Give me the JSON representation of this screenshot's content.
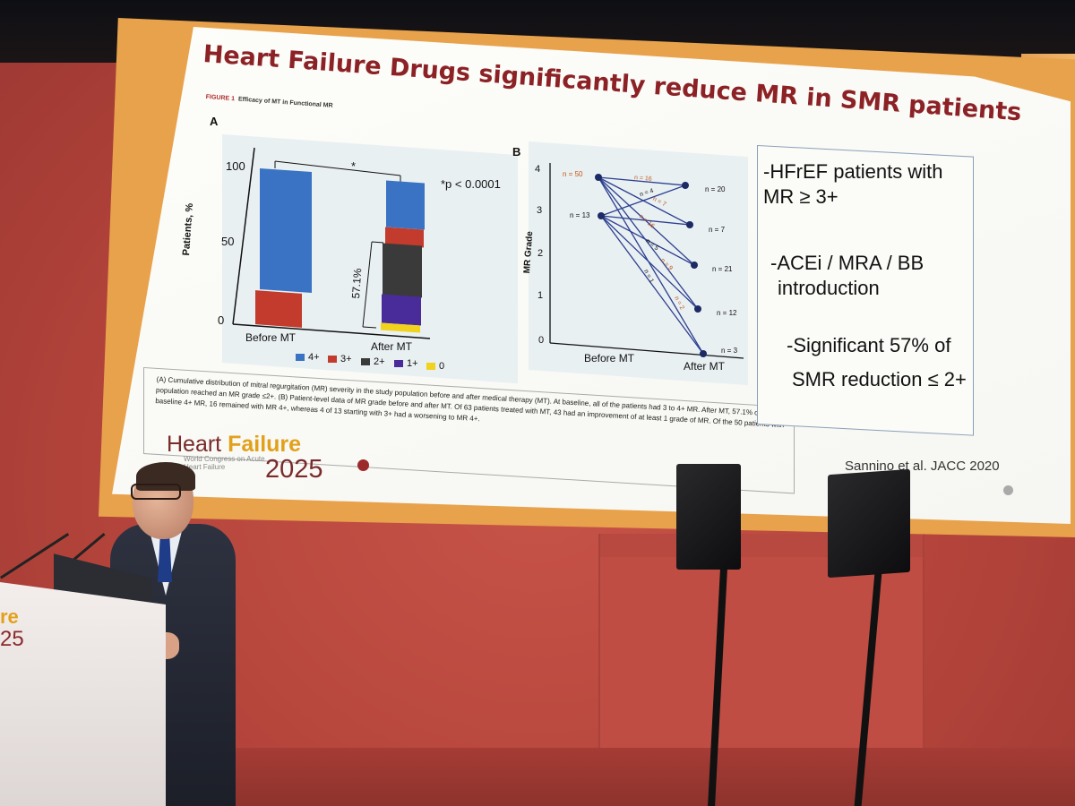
{
  "slide": {
    "title": "Heart Failure Drugs significantly reduce MR in SMR patients",
    "figure_header": "FIGURE 1",
    "figure_subheader": "Efficacy of MT in Functional MR",
    "panel_a_letter": "A",
    "panel_b_letter": "B",
    "panel_a": {
      "ylabel": "Patients, %",
      "yticks": [
        "100",
        "50",
        "0"
      ],
      "significance_star": "*",
      "pvalue": "*p < 0.0001",
      "bracket_label": "57.1%",
      "categories": [
        "Before MT",
        "After MT"
      ],
      "legend": [
        {
          "label": "4+",
          "color": "#3b73c4"
        },
        {
          "label": "3+",
          "color": "#c23b2c"
        },
        {
          "label": "2+",
          "color": "#3a3a3a"
        },
        {
          "label": "1+",
          "color": "#4a2b9a"
        },
        {
          "label": "0",
          "color": "#f1d21c"
        }
      ]
    },
    "panel_b": {
      "ylabel": "MR Grade",
      "yticks": [
        "4",
        "3",
        "2",
        "1",
        "0"
      ],
      "xcategories": [
        "Before MT",
        "After MT"
      ],
      "baseline_labels": [
        "n = 50",
        "n = 13"
      ],
      "end_labels": [
        "n = 20",
        "n = 7",
        "n = 21",
        "n = 12",
        "n = 3"
      ],
      "line_labels": [
        "n = 16",
        "n = 4",
        "n = 7",
        "n = 16",
        "n = 5",
        "n = 9",
        "n = 1",
        "n = 2"
      ]
    },
    "caption": "(A) Cumulative distribution of mitral regurgitation (MR) severity in the study population before and after medical therapy (MT). At baseline, all of the patients had 3 to 4+ MR. After MT, 57.1% of the population reached an MR grade ≤2+. (B) Patient-level data of MR grade before and after MT. Of 63 patients treated with MT, 43 had an improvement of at least 1 grade of MR. Of the 50 patients with baseline 4+ MR, 16 remained with MR 4+, whereas 4 of 13 starting with 3+ had a worsening to MR 4+.",
    "bullets": [
      "-HFrEF patients with",
      "MR ≥ 3+",
      "-ACEi / MRA / BB",
      "introduction",
      "-Significant 57% of",
      "SMR reduction ≤ 2+"
    ],
    "brand": {
      "heart": "Heart",
      "failure": "Failure",
      "year": "2025",
      "subtitle": "World Congress on Acute Heart Failure"
    },
    "citation": "Sannino et al. JACC 2020"
  },
  "podium": {
    "logo_line1": "re",
    "logo_line2": "25"
  }
}
